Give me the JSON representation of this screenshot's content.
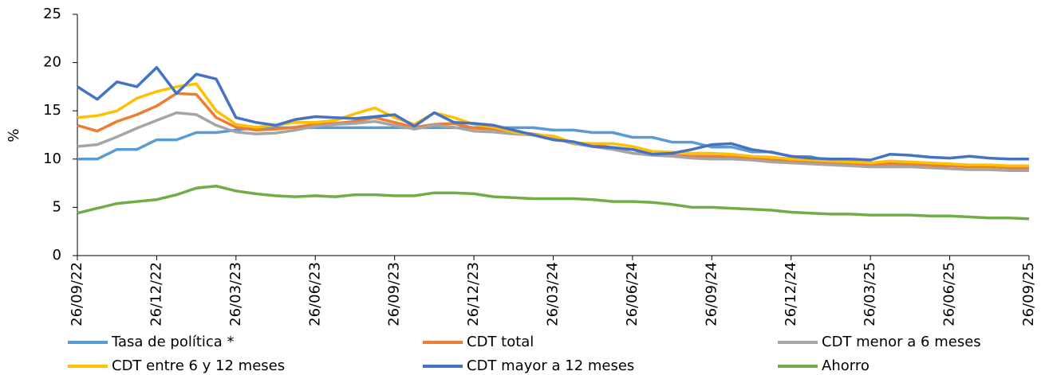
{
  "chart_data": {
    "type": "line",
    "ylabel": "%",
    "categories": [
      "26/09/22",
      null,
      null,
      null,
      "26/12/22",
      null,
      null,
      null,
      "26/03/23",
      null,
      null,
      null,
      "26/06/23",
      null,
      null,
      null,
      "26/09/23",
      null,
      null,
      null,
      "26/12/23",
      null,
      null,
      null,
      "26/03/24",
      null,
      null,
      null,
      "26/06/24",
      null,
      null,
      null,
      "26/09/24",
      null,
      null,
      null,
      "26/12/24",
      null,
      null,
      null,
      "26/03/25",
      null,
      null,
      null,
      "26/06/25",
      null,
      null,
      null,
      "26/09/25"
    ],
    "ylim": [
      0,
      25
    ],
    "yticks": [
      0,
      5,
      10,
      15,
      20,
      25
    ],
    "series": [
      {
        "name": "Tasa de política *",
        "color": "#5b9bd5",
        "values": [
          10,
          10,
          11,
          11,
          12,
          12,
          12.75,
          12.75,
          13,
          13.25,
          13.25,
          13.25,
          13.25,
          13.25,
          13.25,
          13.25,
          13.25,
          13.25,
          13.25,
          13.25,
          13.25,
          13.25,
          13.25,
          13.25,
          13,
          13,
          12.75,
          12.75,
          12.25,
          12.25,
          11.75,
          11.75,
          11.25,
          11.25,
          10.75,
          10.75,
          10.25,
          10.25,
          9.75,
          9.75,
          9.5,
          9.5,
          9.5,
          9.5,
          9.5,
          9.25,
          9.25,
          9.25,
          9.25
        ]
      },
      {
        "name": "CDT total",
        "color": "#ed7d31",
        "values": [
          13.5,
          12.9,
          13.9,
          14.6,
          15.5,
          16.8,
          16.7,
          14.3,
          13.3,
          13.0,
          13.1,
          13.3,
          13.6,
          13.7,
          13.9,
          14.3,
          13.8,
          13.3,
          13.6,
          13.7,
          13.2,
          13.1,
          12.8,
          12.6,
          12.3,
          11.7,
          11.5,
          11.2,
          10.6,
          10.5,
          10.4,
          10.3,
          10.3,
          10.2,
          10.1,
          9.9,
          9.8,
          9.7,
          9.6,
          9.5,
          9.4,
          9.5,
          9.4,
          9.3,
          9.3,
          9.2,
          9.2,
          9.1,
          9.1
        ]
      },
      {
        "name": "CDT menor a 6 meses",
        "color": "#a5a5a5",
        "values": [
          11.3,
          11.5,
          12.3,
          13.2,
          14.0,
          14.8,
          14.6,
          13.5,
          12.8,
          12.6,
          12.7,
          13.0,
          13.4,
          13.6,
          13.7,
          13.9,
          13.5,
          13.1,
          13.5,
          13.3,
          12.9,
          12.8,
          12.6,
          12.5,
          12.2,
          11.6,
          11.3,
          11.0,
          10.6,
          10.4,
          10.3,
          10.1,
          10.0,
          10.0,
          9.9,
          9.7,
          9.6,
          9.5,
          9.4,
          9.3,
          9.2,
          9.2,
          9.2,
          9.1,
          9.0,
          8.9,
          8.9,
          8.8,
          8.8
        ]
      },
      {
        "name": "CDT entre 6 y 12 meses",
        "color": "#ffc000",
        "values": [
          14.3,
          14.5,
          15.0,
          16.3,
          17.0,
          17.5,
          17.8,
          15.0,
          13.6,
          13.3,
          13.5,
          13.8,
          13.8,
          14.0,
          14.7,
          15.3,
          14.3,
          13.6,
          14.8,
          14.3,
          13.6,
          13.3,
          12.8,
          12.5,
          12.4,
          11.7,
          11.6,
          11.6,
          11.3,
          10.8,
          10.7,
          10.6,
          10.6,
          10.5,
          10.3,
          10.2,
          10.0,
          9.9,
          9.8,
          9.7,
          9.6,
          9.8,
          9.7,
          9.6,
          9.5,
          9.4,
          9.4,
          9.3,
          9.3
        ]
      },
      {
        "name": "CDT mayor a 12 meses",
        "color": "#4472c4",
        "values": [
          17.5,
          16.2,
          18.0,
          17.5,
          19.5,
          16.8,
          18.8,
          18.3,
          14.3,
          13.8,
          13.5,
          14.1,
          14.4,
          14.3,
          14.2,
          14.4,
          14.6,
          13.4,
          14.8,
          13.8,
          13.7,
          13.5,
          13.0,
          12.5,
          12.0,
          11.8,
          11.3,
          11.2,
          11.0,
          10.5,
          10.6,
          11.0,
          11.5,
          11.6,
          11.0,
          10.7,
          10.3,
          10.1,
          10.0,
          10.0,
          9.9,
          10.5,
          10.4,
          10.2,
          10.1,
          10.3,
          10.1,
          10.0,
          10.0
        ]
      },
      {
        "name": "Ahorro",
        "color": "#70ad47",
        "values": [
          4.4,
          4.9,
          5.4,
          5.6,
          5.8,
          6.3,
          7.0,
          7.2,
          6.7,
          6.4,
          6.2,
          6.1,
          6.2,
          6.1,
          6.3,
          6.3,
          6.2,
          6.2,
          6.5,
          6.5,
          6.4,
          6.1,
          6.0,
          5.9,
          5.9,
          5.9,
          5.8,
          5.6,
          5.6,
          5.5,
          5.3,
          5.0,
          5.0,
          4.9,
          4.8,
          4.7,
          4.5,
          4.4,
          4.3,
          4.3,
          4.2,
          4.2,
          4.2,
          4.1,
          4.1,
          4.0,
          3.9,
          3.9,
          3.8
        ]
      }
    ]
  }
}
